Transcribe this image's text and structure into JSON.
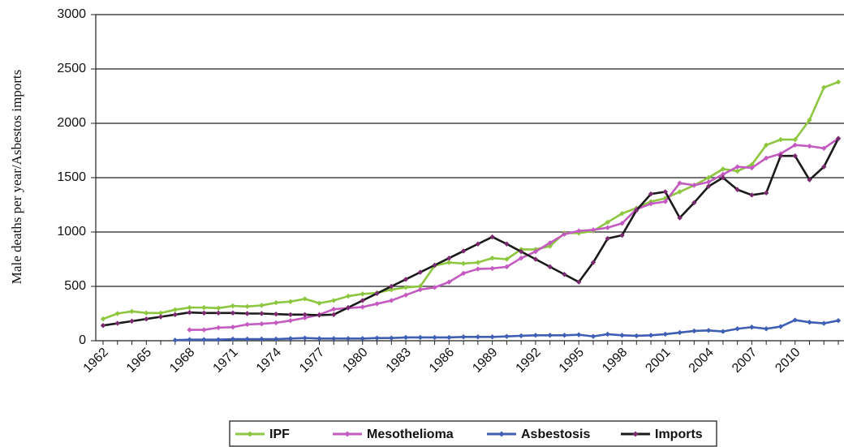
{
  "chart_data": {
    "type": "line",
    "y_label": "Male deaths per year/Asbestos imports",
    "categories": [
      "1962",
      null,
      null,
      "1965",
      null,
      null,
      "1968",
      null,
      null,
      "1971",
      null,
      null,
      "1974",
      null,
      null,
      "1977",
      null,
      null,
      "1980",
      null,
      null,
      "1983",
      null,
      null,
      "1986",
      null,
      null,
      "1989",
      null,
      null,
      "1992",
      null,
      null,
      "1995",
      null,
      null,
      "1998",
      null,
      null,
      "2001",
      null,
      null,
      "2004",
      null,
      null,
      "2007",
      null,
      null,
      "2010",
      null,
      null,
      null
    ],
    "series": [
      {
        "name": "IPF",
        "color": "#8dc63f",
        "values": [
          200,
          250,
          270,
          255,
          255,
          285,
          305,
          305,
          300,
          320,
          315,
          325,
          350,
          360,
          385,
          345,
          370,
          410,
          430,
          440,
          470,
          490,
          500,
          690,
          720,
          710,
          720,
          760,
          750,
          840,
          840,
          870,
          990,
          990,
          1010,
          1090,
          1170,
          1220,
          1280,
          1310,
          1370,
          1430,
          1500,
          1580,
          1560,
          1620,
          1800,
          1850,
          1850,
          2030,
          2330,
          2380
        ]
      },
      {
        "name": "Mesothelioma",
        "color": "#c35bc0",
        "values": [
          null,
          null,
          null,
          null,
          null,
          null,
          100,
          100,
          120,
          125,
          150,
          155,
          165,
          185,
          210,
          240,
          290,
          300,
          310,
          340,
          370,
          420,
          470,
          490,
          540,
          620,
          660,
          665,
          680,
          760,
          820,
          900,
          980,
          1010,
          1020,
          1040,
          1080,
          1210,
          1260,
          1280,
          1450,
          1430,
          1460,
          1530,
          1600,
          1590,
          1680,
          1720,
          1800,
          1790,
          1770,
          1860
        ]
      },
      {
        "name": "Asbestosis",
        "color": "#3f5fb5",
        "values": [
          null,
          null,
          null,
          null,
          null,
          5,
          10,
          10,
          10,
          15,
          15,
          15,
          15,
          20,
          25,
          20,
          20,
          20,
          20,
          25,
          25,
          30,
          30,
          30,
          30,
          35,
          35,
          35,
          40,
          45,
          50,
          50,
          50,
          55,
          40,
          60,
          50,
          45,
          50,
          60,
          75,
          90,
          95,
          85,
          110,
          125,
          110,
          130,
          190,
          170,
          160,
          185
        ]
      },
      {
        "name": "Imports",
        "color": "#1a1a1a",
        "marker_color": "#7a2a6e",
        "values": [
          140,
          160,
          180,
          200,
          220,
          240,
          260,
          255,
          255,
          255,
          250,
          250,
          245,
          240,
          240,
          235,
          240,
          305,
          370,
          435,
          500,
          565,
          630,
          695,
          760,
          825,
          890,
          955,
          890,
          820,
          750,
          680,
          610,
          540,
          720,
          940,
          970,
          1200,
          1350,
          1370,
          1130,
          1270,
          1420,
          1500,
          1390,
          1340,
          1360,
          1700,
          1700,
          1480,
          1600,
          1860
        ]
      }
    ],
    "ylim": [
      0,
      3000
    ],
    "yticks": [
      0,
      500,
      1000,
      1500,
      2000,
      2500,
      3000
    ],
    "grid": true,
    "legend": "bottom"
  }
}
